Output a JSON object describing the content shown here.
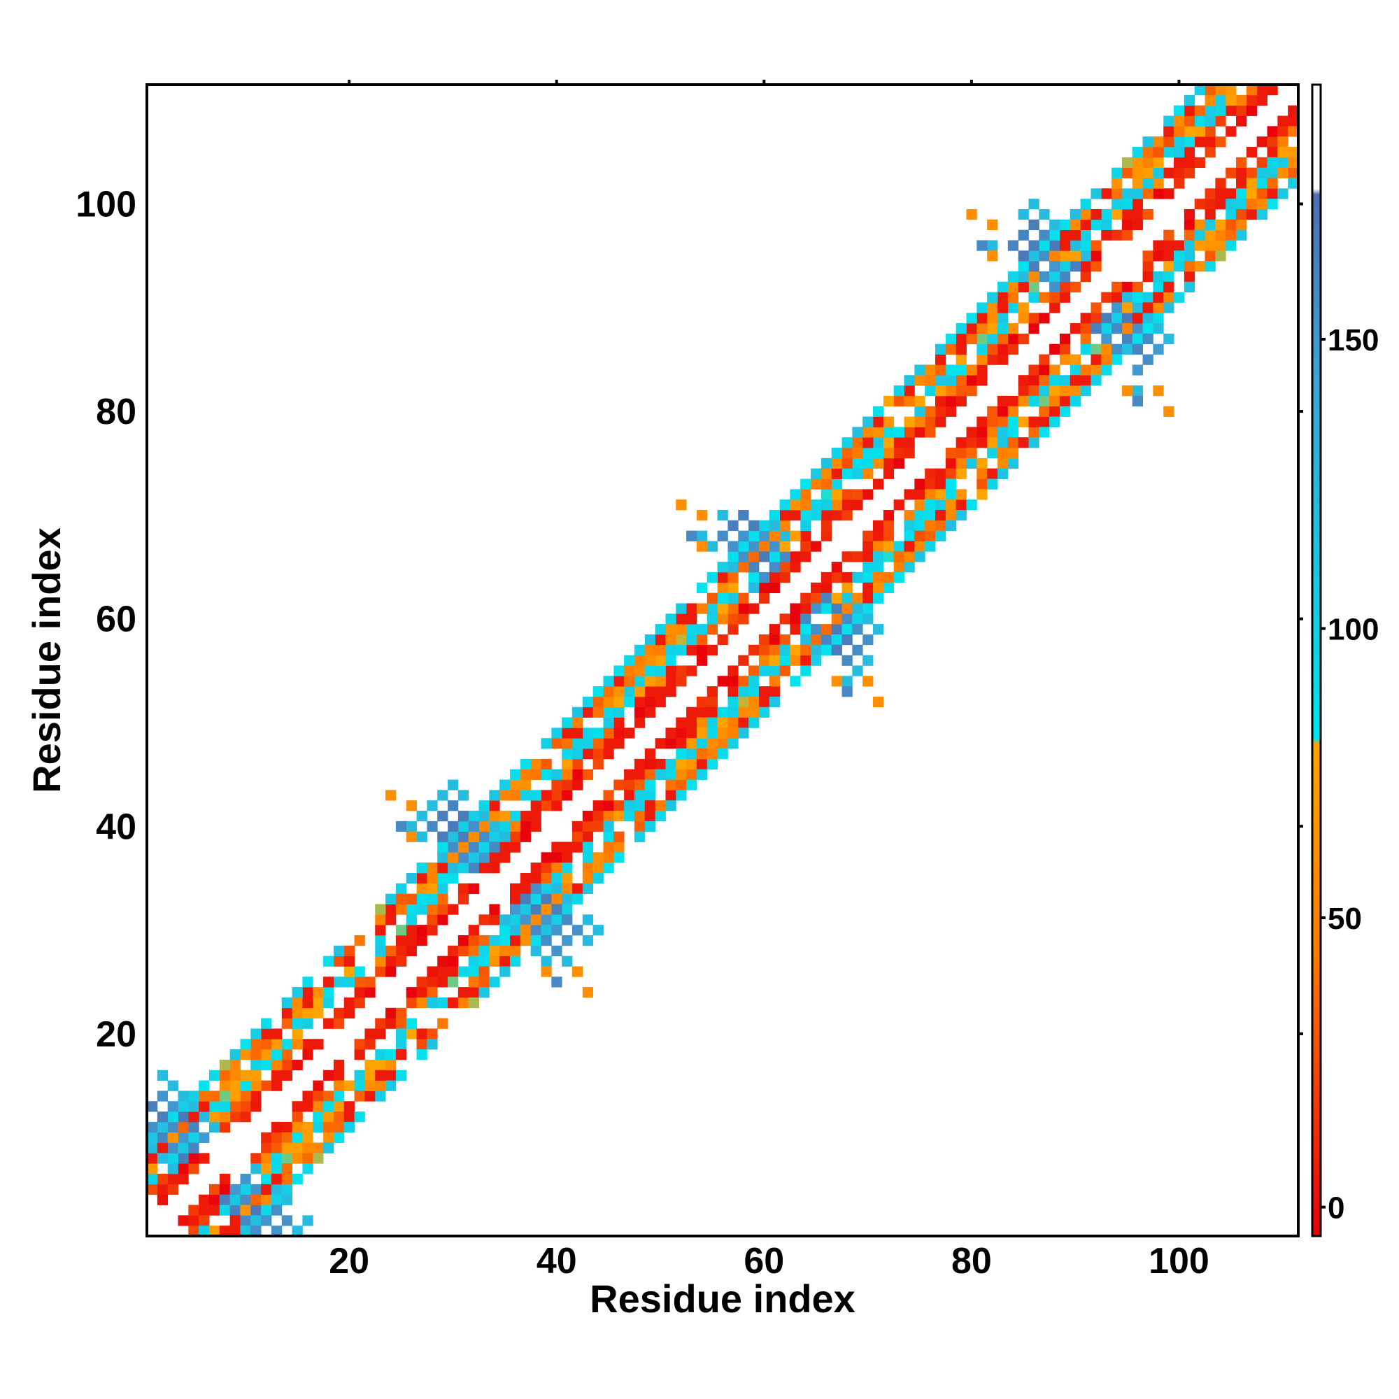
{
  "chart_data": {
    "type": "heatmap",
    "title": "",
    "xlabel": "Residue index",
    "ylabel": "Residue index",
    "xlim": [
      1,
      111
    ],
    "ylim": [
      1,
      111
    ],
    "xticks": [
      20,
      40,
      60,
      80,
      100
    ],
    "yticks": [
      20,
      40,
      60,
      80,
      100
    ],
    "grid": false,
    "colorbar": {
      "range": [
        -5,
        194
      ],
      "ticks": [
        0,
        50,
        100,
        150
      ],
      "stops": [
        {
          "value": -5,
          "color": "#e8000b"
        },
        {
          "value": 45,
          "color": "#ff7f00"
        },
        {
          "value": 80,
          "color": "#ffa500"
        },
        {
          "value": 81,
          "color": "#00e5ee"
        },
        {
          "value": 145,
          "color": "#3da2d6"
        },
        {
          "value": 175,
          "color": "#4f6fb0"
        },
        {
          "value": 176,
          "color": "#ffffff"
        },
        {
          "value": 194,
          "color": "#ffffff"
        }
      ]
    },
    "contact_map_description": "Symmetric residue-residue contact map, mostly near-diagonal contacts, four repeated domain crossings near residues 7, 35, 63, 91.",
    "bands": [
      {
        "offset_min": 2,
        "offset_max": 3,
        "value": 10
      },
      {
        "offset_min": 4,
        "offset_max": 4,
        "value": 40
      },
      {
        "offset_min": 5,
        "offset_max": 6,
        "value": 90
      },
      {
        "offset_min": 7,
        "offset_max": 8,
        "value": 45
      },
      {
        "offset_min": 9,
        "offset_max": 9,
        "value": 100
      }
    ],
    "crossings": [
      {
        "center": 7,
        "value": 160,
        "halo_value": 120
      },
      {
        "center": 35,
        "value": 160,
        "halo_value": 120
      },
      {
        "center": 63,
        "value": 160,
        "halo_value": 120
      },
      {
        "center": 91,
        "value": 160,
        "halo_value": 120
      }
    ]
  }
}
